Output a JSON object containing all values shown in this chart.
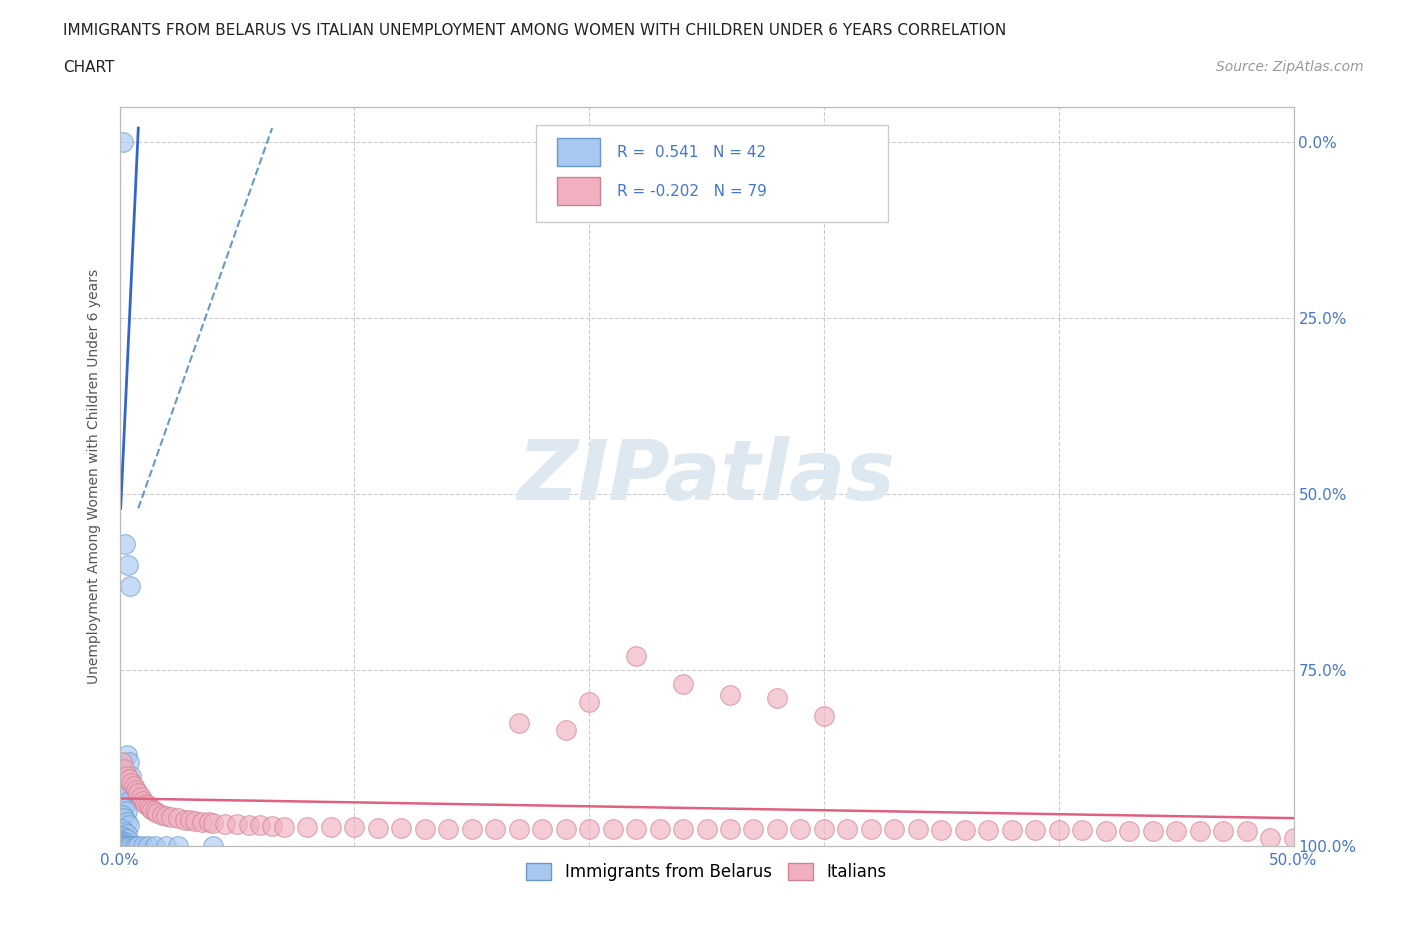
{
  "title_line1": "IMMIGRANTS FROM BELARUS VS ITALIAN UNEMPLOYMENT AMONG WOMEN WITH CHILDREN UNDER 6 YEARS CORRELATION",
  "title_line2": "CHART",
  "source": "Source: ZipAtlas.com",
  "ylabel": "Unemployment Among Women with Children Under 6 years",
  "xlim": [
    0.0,
    0.5
  ],
  "ylim": [
    0.0,
    1.05
  ],
  "xtick_values": [
    0.0,
    0.1,
    0.2,
    0.3,
    0.4,
    0.5
  ],
  "xtick_labels": [
    "0.0%",
    "",
    "",
    "",
    "",
    "50.0%"
  ],
  "ytick_values": [
    0.0,
    0.25,
    0.5,
    0.75,
    1.0
  ],
  "ytick_labels_left": [
    "",
    "",
    "",
    "",
    ""
  ],
  "ytick_labels_right": [
    "100.0%",
    "75.0%",
    "50.0%",
    "25.0%",
    "0.0%"
  ],
  "scatter_blue": {
    "color": "#a8c8f0",
    "edgecolor": "#6699cc",
    "points": [
      [
        0.0015,
        1.0
      ],
      [
        0.0025,
        0.43
      ],
      [
        0.0035,
        0.4
      ],
      [
        0.0045,
        0.37
      ],
      [
        0.003,
        0.13
      ],
      [
        0.004,
        0.12
      ],
      [
        0.005,
        0.1
      ],
      [
        0.002,
        0.085
      ],
      [
        0.003,
        0.075
      ],
      [
        0.001,
        0.07
      ],
      [
        0.004,
        0.065
      ],
      [
        0.002,
        0.055
      ],
      [
        0.003,
        0.05
      ],
      [
        0.001,
        0.045
      ],
      [
        0.002,
        0.04
      ],
      [
        0.003,
        0.035
      ],
      [
        0.004,
        0.03
      ],
      [
        0.001,
        0.025
      ],
      [
        0.002,
        0.02
      ],
      [
        0.003,
        0.018
      ],
      [
        0.001,
        0.015
      ],
      [
        0.002,
        0.012
      ],
      [
        0.003,
        0.01
      ],
      [
        0.001,
        0.008
      ],
      [
        0.002,
        0.006
      ],
      [
        0.001,
        0.004
      ],
      [
        0.001,
        0.003
      ],
      [
        0.001,
        0.002
      ],
      [
        0.001,
        0.001
      ],
      [
        0.002,
        0.001
      ],
      [
        0.003,
        0.001
      ],
      [
        0.004,
        0.001
      ],
      [
        0.005,
        0.001
      ],
      [
        0.006,
        0.001
      ],
      [
        0.007,
        0.001
      ],
      [
        0.008,
        0.001
      ],
      [
        0.01,
        0.001
      ],
      [
        0.012,
        0.001
      ],
      [
        0.015,
        0.001
      ],
      [
        0.02,
        0.001
      ],
      [
        0.025,
        0.001
      ],
      [
        0.04,
        0.001
      ]
    ]
  },
  "scatter_pink": {
    "color": "#f0b0c0",
    "edgecolor": "#d08090",
    "points": [
      [
        0.001,
        0.12
      ],
      [
        0.002,
        0.11
      ],
      [
        0.003,
        0.1
      ],
      [
        0.004,
        0.095
      ],
      [
        0.005,
        0.09
      ],
      [
        0.006,
        0.085
      ],
      [
        0.007,
        0.08
      ],
      [
        0.008,
        0.075
      ],
      [
        0.009,
        0.07
      ],
      [
        0.01,
        0.065
      ],
      [
        0.011,
        0.06
      ],
      [
        0.012,
        0.058
      ],
      [
        0.013,
        0.055
      ],
      [
        0.014,
        0.052
      ],
      [
        0.015,
        0.05
      ],
      [
        0.016,
        0.048
      ],
      [
        0.018,
        0.045
      ],
      [
        0.02,
        0.043
      ],
      [
        0.022,
        0.042
      ],
      [
        0.025,
        0.04
      ],
      [
        0.028,
        0.038
      ],
      [
        0.03,
        0.037
      ],
      [
        0.032,
        0.036
      ],
      [
        0.035,
        0.035
      ],
      [
        0.038,
        0.034
      ],
      [
        0.04,
        0.033
      ],
      [
        0.045,
        0.032
      ],
      [
        0.05,
        0.031
      ],
      [
        0.055,
        0.03
      ],
      [
        0.06,
        0.03
      ],
      [
        0.065,
        0.029
      ],
      [
        0.07,
        0.028
      ],
      [
        0.08,
        0.028
      ],
      [
        0.09,
        0.027
      ],
      [
        0.1,
        0.027
      ],
      [
        0.11,
        0.026
      ],
      [
        0.12,
        0.026
      ],
      [
        0.13,
        0.025
      ],
      [
        0.14,
        0.025
      ],
      [
        0.15,
        0.025
      ],
      [
        0.16,
        0.025
      ],
      [
        0.17,
        0.025
      ],
      [
        0.18,
        0.025
      ],
      [
        0.19,
        0.025
      ],
      [
        0.2,
        0.025
      ],
      [
        0.21,
        0.025
      ],
      [
        0.22,
        0.025
      ],
      [
        0.23,
        0.025
      ],
      [
        0.24,
        0.025
      ],
      [
        0.25,
        0.025
      ],
      [
        0.26,
        0.025
      ],
      [
        0.27,
        0.025
      ],
      [
        0.28,
        0.025
      ],
      [
        0.29,
        0.024
      ],
      [
        0.3,
        0.024
      ],
      [
        0.31,
        0.024
      ],
      [
        0.32,
        0.024
      ],
      [
        0.33,
        0.024
      ],
      [
        0.34,
        0.024
      ],
      [
        0.35,
        0.023
      ],
      [
        0.36,
        0.023
      ],
      [
        0.37,
        0.023
      ],
      [
        0.38,
        0.023
      ],
      [
        0.39,
        0.023
      ],
      [
        0.4,
        0.023
      ],
      [
        0.41,
        0.023
      ],
      [
        0.42,
        0.022
      ],
      [
        0.43,
        0.022
      ],
      [
        0.44,
        0.022
      ],
      [
        0.45,
        0.022
      ],
      [
        0.46,
        0.022
      ],
      [
        0.47,
        0.022
      ],
      [
        0.48,
        0.022
      ],
      [
        0.49,
        0.012
      ],
      [
        0.5,
        0.012
      ],
      [
        0.22,
        0.27
      ],
      [
        0.24,
        0.23
      ],
      [
        0.26,
        0.215
      ],
      [
        0.2,
        0.205
      ],
      [
        0.28,
        0.21
      ],
      [
        0.3,
        0.185
      ],
      [
        0.17,
        0.175
      ],
      [
        0.19,
        0.165
      ]
    ]
  },
  "trendline_blue_solid": {
    "color": "#3366cc",
    "x": [
      0.0005,
      0.008
    ],
    "y": [
      0.48,
      1.02
    ]
  },
  "trendline_blue_dashed": {
    "color": "#6699cc",
    "x": [
      0.008,
      0.065
    ],
    "y": [
      0.48,
      1.02
    ]
  },
  "trendline_pink": {
    "color": "#e06080",
    "x": [
      0.0,
      0.5
    ],
    "y": [
      0.068,
      0.04
    ]
  },
  "background_color": "#ffffff",
  "grid_color": "#cccccc",
  "axis_color": "#4477cc",
  "watermark_text": "ZIPatlas",
  "watermark_color": "#dde8f0",
  "watermark_fontsize": 60
}
